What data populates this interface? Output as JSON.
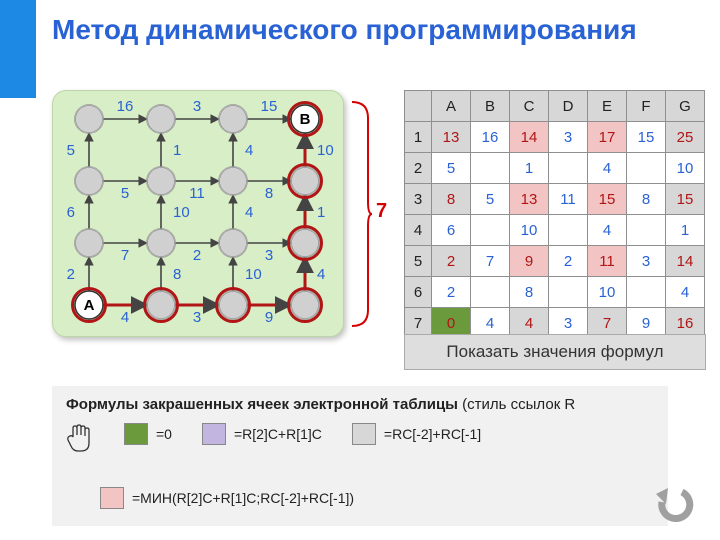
{
  "title": "Метод динамического программирования",
  "bracket_label": "7",
  "bracket_color": "#d60000",
  "graph": {
    "panel_bg": "#d8eec6",
    "rows": 4,
    "cols": 4,
    "node_label_A": "A",
    "node_label_B": "B",
    "node_r": 14,
    "node_fill": "#d0d0d0",
    "node_stroke": "#555",
    "path_stroke": "#b11515",
    "edge_label_color": "#2962d4",
    "h_edges": [
      [
        16,
        3,
        15
      ],
      [
        5,
        11,
        8
      ],
      [
        7,
        2,
        3
      ],
      [
        4,
        3,
        9
      ]
    ],
    "v_edges": [
      [
        5,
        1,
        4,
        10
      ],
      [
        6,
        10,
        4,
        1
      ],
      [
        2,
        8,
        10,
        4
      ]
    ]
  },
  "sheet": {
    "col_headers": [
      "A",
      "B",
      "C",
      "D",
      "E",
      "F",
      "G"
    ],
    "row_headers": [
      "1",
      "2",
      "3",
      "4",
      "5",
      "6",
      "7"
    ],
    "header_bg": "#d7d7d7",
    "colors": {
      "green": "#6a9a3b",
      "purple": "#c2b6e0",
      "pink": "#f2c4c4",
      "gray": "#d7d7d7",
      "white": "#ffffff"
    },
    "cells": [
      [
        {
          "v": "13",
          "bg": "gray",
          "red": 1
        },
        {
          "v": "16"
        },
        {
          "v": "14",
          "bg": "pink",
          "red": 1
        },
        {
          "v": "3"
        },
        {
          "v": "17",
          "bg": "pink",
          "red": 1
        },
        {
          "v": "15"
        },
        {
          "v": "25",
          "bg": "gray",
          "red": 1
        }
      ],
      [
        {
          "v": "5"
        },
        {
          "v": ""
        },
        {
          "v": "1"
        },
        {
          "v": ""
        },
        {
          "v": "4"
        },
        {
          "v": ""
        },
        {
          "v": "10"
        }
      ],
      [
        {
          "v": "8",
          "bg": "gray",
          "red": 1
        },
        {
          "v": "5"
        },
        {
          "v": "13",
          "bg": "pink",
          "red": 1
        },
        {
          "v": "11"
        },
        {
          "v": "15",
          "bg": "pink",
          "red": 1
        },
        {
          "v": "8"
        },
        {
          "v": "15",
          "bg": "gray",
          "red": 1
        }
      ],
      [
        {
          "v": "6"
        },
        {
          "v": ""
        },
        {
          "v": "10"
        },
        {
          "v": ""
        },
        {
          "v": "4"
        },
        {
          "v": ""
        },
        {
          "v": "1"
        }
      ],
      [
        {
          "v": "2",
          "bg": "gray",
          "red": 1
        },
        {
          "v": "7"
        },
        {
          "v": "9",
          "bg": "pink",
          "red": 1
        },
        {
          "v": "2"
        },
        {
          "v": "11",
          "bg": "pink",
          "red": 1
        },
        {
          "v": "3"
        },
        {
          "v": "14",
          "bg": "gray",
          "red": 1
        }
      ],
      [
        {
          "v": "2"
        },
        {
          "v": ""
        },
        {
          "v": "8"
        },
        {
          "v": ""
        },
        {
          "v": "10"
        },
        {
          "v": ""
        },
        {
          "v": "4"
        }
      ],
      [
        {
          "v": "0",
          "bg": "green",
          "red": 1
        },
        {
          "v": "4"
        },
        {
          "v": "4",
          "bg": "gray",
          "red": 1
        },
        {
          "v": "3"
        },
        {
          "v": "7",
          "bg": "gray",
          "red": 1
        },
        {
          "v": "9"
        },
        {
          "v": "16",
          "bg": "gray",
          "red": 1
        }
      ]
    ]
  },
  "button_show": "Показать значения формул",
  "formulas": {
    "headline_bold": "Формулы закрашенных ячеек электронной таблицы ",
    "headline_tail": "(стиль ссылок R",
    "items": [
      {
        "swatch": "green",
        "text": "=0"
      },
      {
        "swatch": "purple",
        "text": "=R[2]C+R[1]C"
      },
      {
        "swatch": "gray",
        "text": "=RC[-2]+RC[-1]"
      },
      {
        "swatch": "pink",
        "text": "=МИН(R[2]C+R[1]C;RC[-2]+RC[-1])"
      }
    ]
  }
}
